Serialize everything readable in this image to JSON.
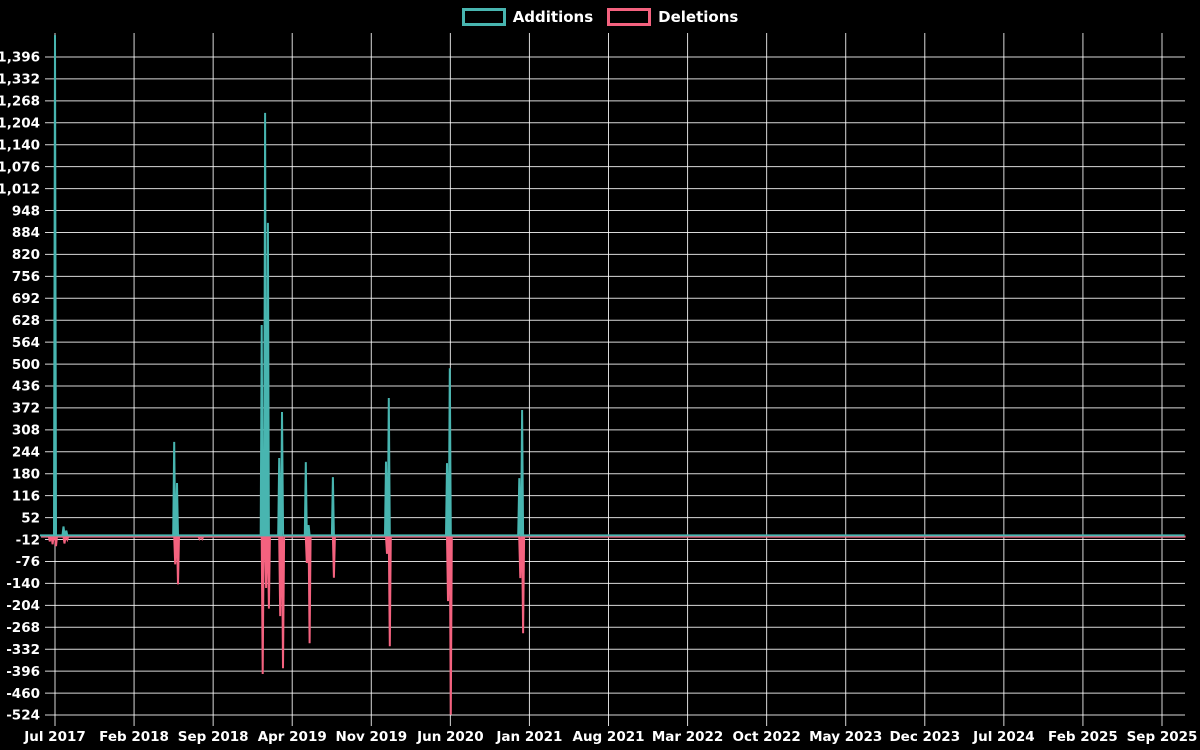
{
  "legend": {
    "items": [
      {
        "label": "Additions",
        "color": "#48b5b0"
      },
      {
        "label": "Deletions",
        "color": "#f4627f"
      }
    ]
  },
  "chart_data": {
    "type": "line",
    "title": "",
    "background": "#000000",
    "grid": true,
    "grid_color": "rgba(255,255,255,0.85)",
    "text_color": "#ffffff",
    "legend_position": "top-center",
    "x_axis": {
      "unit": "months since Jul 2017",
      "range_months": [
        -1.33,
        100
      ],
      "ticks": [
        {
          "label": "Jul 2017",
          "month": 0
        },
        {
          "label": "Feb 2018",
          "month": 7
        },
        {
          "label": "Sep 2018",
          "month": 14
        },
        {
          "label": "Apr 2019",
          "month": 21
        },
        {
          "label": "Nov 2019",
          "month": 28
        },
        {
          "label": "Jun 2020",
          "month": 35
        },
        {
          "label": "Jan 2021",
          "month": 42
        },
        {
          "label": "Aug 2021",
          "month": 49
        },
        {
          "label": "Mar 2022",
          "month": 56
        },
        {
          "label": "Oct 2022",
          "month": 63
        },
        {
          "label": "May 2023",
          "month": 70
        },
        {
          "label": "Dec 2023",
          "month": 77
        },
        {
          "label": "Jul 2024",
          "month": 84
        },
        {
          "label": "Feb 2025",
          "month": 91
        },
        {
          "label": "Sep 2025",
          "month": 98
        }
      ]
    },
    "y_axis": {
      "range": [
        -530,
        1466
      ],
      "step": 64,
      "ticks": [
        {
          "label": "1,396",
          "value": 1396
        },
        {
          "label": "1,332",
          "value": 1332
        },
        {
          "label": "1,268",
          "value": 1268
        },
        {
          "label": "1,204",
          "value": 1204
        },
        {
          "label": "1,140",
          "value": 1140
        },
        {
          "label": "1,076",
          "value": 1076
        },
        {
          "label": "1,012",
          "value": 1012
        },
        {
          "label": "948",
          "value": 948
        },
        {
          "label": "884",
          "value": 884
        },
        {
          "label": "820",
          "value": 820
        },
        {
          "label": "756",
          "value": 756
        },
        {
          "label": "692",
          "value": 692
        },
        {
          "label": "628",
          "value": 628
        },
        {
          "label": "564",
          "value": 564
        },
        {
          "label": "500",
          "value": 500
        },
        {
          "label": "436",
          "value": 436
        },
        {
          "label": "372",
          "value": 372
        },
        {
          "label": "308",
          "value": 308
        },
        {
          "label": "244",
          "value": 244
        },
        {
          "label": "180",
          "value": 180
        },
        {
          "label": "116",
          "value": 116
        },
        {
          "label": "52",
          "value": 52
        },
        {
          "label": "-12",
          "value": -12
        },
        {
          "label": "-76",
          "value": -76
        },
        {
          "label": "-140",
          "value": -140
        },
        {
          "label": "-204",
          "value": -204
        },
        {
          "label": "-268",
          "value": -268
        },
        {
          "label": "-332",
          "value": -332
        },
        {
          "label": "-396",
          "value": -396
        },
        {
          "label": "-460",
          "value": -460
        },
        {
          "label": "-524",
          "value": -524
        }
      ]
    },
    "spike_half_width_months": 0.09,
    "series": [
      {
        "name": "Additions",
        "color": "#48b5b0",
        "baseline": 0,
        "events": [
          [
            0,
            1460
          ],
          [
            0.75,
            26
          ],
          [
            1.0,
            14
          ],
          [
            10.55,
            273
          ],
          [
            10.8,
            153
          ],
          [
            18.3,
            614
          ],
          [
            18.6,
            1233
          ],
          [
            18.85,
            912
          ],
          [
            19.85,
            226
          ],
          [
            20.1,
            360
          ],
          [
            22.2,
            214
          ],
          [
            22.45,
            30
          ],
          [
            24.6,
            170
          ],
          [
            29.3,
            215
          ],
          [
            29.55,
            401
          ],
          [
            34.7,
            211
          ],
          [
            34.95,
            488
          ],
          [
            41.1,
            167
          ],
          [
            41.35,
            366
          ]
        ]
      },
      {
        "name": "Deletions",
        "color": "#f4627f",
        "baseline": 0,
        "events": [
          [
            -0.55,
            -14
          ],
          [
            -0.3,
            -22
          ],
          [
            0,
            -28
          ],
          [
            0.75,
            -20
          ],
          [
            1.0,
            -8
          ],
          [
            10.55,
            -81
          ],
          [
            10.8,
            -139
          ],
          [
            12.7,
            -6
          ],
          [
            12.95,
            -6
          ],
          [
            18.3,
            -401
          ],
          [
            18.6,
            -150
          ],
          [
            18.85,
            -210
          ],
          [
            19.85,
            -232
          ],
          [
            20.1,
            -384
          ],
          [
            22.2,
            -77
          ],
          [
            22.45,
            -311
          ],
          [
            24.6,
            -120
          ],
          [
            29.3,
            -50
          ],
          [
            29.55,
            -320
          ],
          [
            34.7,
            -188
          ],
          [
            34.95,
            -520
          ],
          [
            41.1,
            -121
          ],
          [
            41.35,
            -282
          ]
        ]
      }
    ]
  }
}
